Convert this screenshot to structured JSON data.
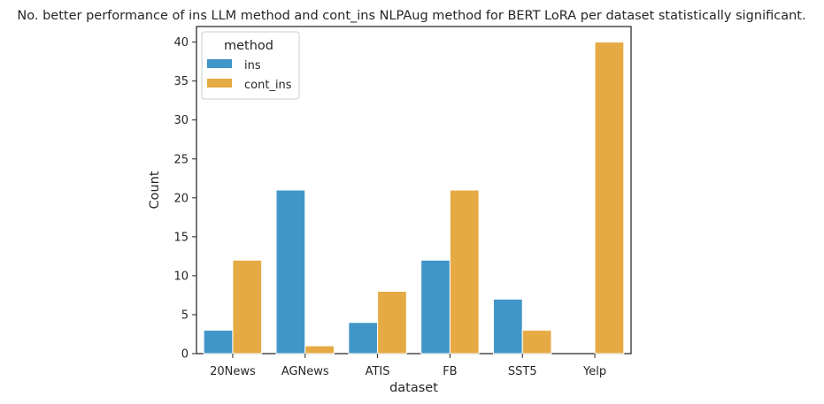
{
  "chart_data": {
    "type": "bar",
    "title": "No. better performance of ins LLM method and cont_ins NLPAug method for BERT LoRA per dataset statistically significant.",
    "xlabel": "dataset",
    "ylabel": "Count",
    "categories": [
      "20News",
      "AGNews",
      "ATIS",
      "FB",
      "SST5",
      "Yelp"
    ],
    "series": [
      {
        "name": "ins",
        "color": "#4196c8",
        "values": [
          3,
          21,
          4,
          12,
          7,
          0
        ]
      },
      {
        "name": "cont_ins",
        "color": "#e6aa44",
        "values": [
          12,
          1,
          8,
          21,
          3,
          40
        ]
      }
    ],
    "ylim": [
      0,
      42
    ],
    "yticks": [
      "0",
      "5",
      "10",
      "15",
      "20",
      "25",
      "30",
      "35",
      "40"
    ],
    "grid": false,
    "legend": {
      "title": "method",
      "position": "top-left"
    }
  }
}
